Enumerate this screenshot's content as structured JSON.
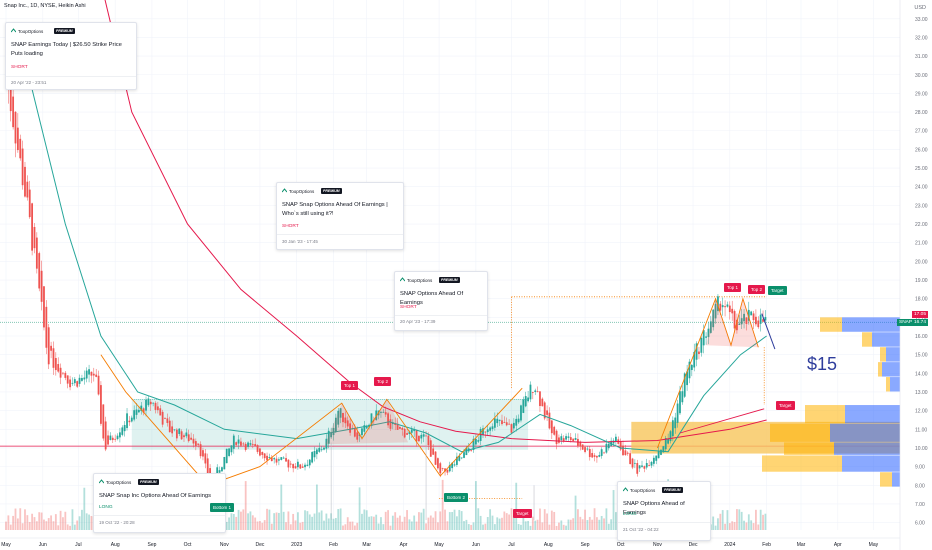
{
  "header": {
    "title": "Snap Inc., 1D, NYSE, Heikin Ashi",
    "currency": "USD"
  },
  "ideas": [
    {
      "author": "ToopOptions",
      "badge": "PREMIUM",
      "title": "SNAP Earnings Today | $26.50 Strike Price Puts loading",
      "side": "SHORT",
      "date": "20 Apr '22 - 23:51"
    },
    {
      "author": "ToopOptions",
      "badge": "PREMIUM",
      "title": "SNAP Snap Options Ahead Of Earnings | Who`s still using it?!",
      "side": "SHORT",
      "date": "30 Jan '23 - 17:45"
    },
    {
      "author": "ToopOptions",
      "badge": "PREMIUM",
      "title": "SNAP  Options Ahead Of Earnings",
      "side": "SHORT",
      "date": "20 Apr '23 - 17:39"
    },
    {
      "author": "ToopOptions",
      "badge": "PREMIUM",
      "title": "SNAP Snap Inc Options Ahead Of Earnings",
      "side": "LONG",
      "date": "19 Oct '22 - 20:28"
    },
    {
      "author": "ToopOptions",
      "badge": "PREMIUM",
      "title": "SNAP Options Ahead of Earnings",
      "side": "LONG",
      "date": "21 Oct '22 - 04:22"
    }
  ],
  "pattern_labels": {
    "top1a": "Top 1",
    "top2a": "Top 2",
    "bottom1": "Bottom 1",
    "bottom2": "Bottom 2",
    "target1": "Target",
    "top1b": "Top 1",
    "top2b": "Top 2",
    "target2": "Target",
    "target3": "Target"
  },
  "projection_label": "$15",
  "price_labels": {
    "ticker": "SNAP",
    "last": "16.74",
    "other": "17.05"
  },
  "colors": {
    "up": "#26a69a",
    "down": "#ef5350",
    "ma_slow": "#e5194c",
    "ma_fast": "#26a69a",
    "pattern": "#f57c00",
    "zone": "#26a69a",
    "vp_up": "#2962ff",
    "vp_down": "#ffb300"
  },
  "chart_data": {
    "type": "line",
    "title": "Snap Inc., 1D, NYSE, Heikin Ashi",
    "y_ticks": [
      6,
      7,
      8,
      9,
      10,
      11,
      12,
      13,
      14,
      15,
      16,
      17,
      18,
      19,
      20,
      21,
      22,
      23,
      24,
      25,
      26,
      27,
      28,
      29,
      30,
      31,
      32,
      33
    ],
    "y_tick_labels": [
      "6.00",
      "7.00",
      "8.00",
      "9.00",
      "10.00",
      "11.00",
      "12.00",
      "13.00",
      "14.00",
      "15.00",
      "16.00",
      "17.00",
      "18.00",
      "19.00",
      "20.00",
      "21.00",
      "22.00",
      "23.00",
      "24.00",
      "25.00",
      "26.00",
      "27.00",
      "28.00",
      "29.00",
      "30.00",
      "31.00",
      "32.00",
      "33.00"
    ],
    "x_ticks": [
      "May",
      "Jun",
      "Jul",
      "Aug",
      "Sep",
      "Oct",
      "Nov",
      "Dec",
      "2023",
      "Feb",
      "Mar",
      "Apr",
      "May",
      "Jun",
      "Jul",
      "Aug",
      "Sep",
      "Oct",
      "Nov",
      "Dec",
      "2024",
      "Feb",
      "Mar",
      "Apr",
      "May"
    ],
    "ylim": [
      5.5,
      34
    ],
    "series": [
      {
        "name": "SNAP",
        "x": [
          "2022-05-01",
          "2022-05-20",
          "2022-06-05",
          "2022-06-25",
          "2022-07-15",
          "2022-07-23",
          "2022-08-10",
          "2022-09-01",
          "2022-09-15",
          "2022-10-10",
          "2022-10-20",
          "2022-11-10",
          "2022-11-25",
          "2022-12-15",
          "2023-01-05",
          "2023-01-25",
          "2023-02-05",
          "2023-02-22",
          "2023-03-10",
          "2023-03-25",
          "2023-04-20",
          "2023-05-01",
          "2023-05-20",
          "2023-06-15",
          "2023-07-01",
          "2023-07-20",
          "2023-08-05",
          "2023-08-20",
          "2023-09-10",
          "2023-09-25",
          "2023-10-15",
          "2023-10-25",
          "2023-11-10",
          "2023-11-25",
          "2023-12-10",
          "2023-12-25",
          "2024-01-05",
          "2024-01-20",
          "2024-02-01"
        ],
        "y": [
          30.0,
          22.5,
          15.0,
          13.5,
          14.0,
          10.0,
          11.5,
          12.5,
          11.0,
          10.3,
          8.0,
          10.5,
          10.0,
          9.3,
          9.0,
          10.2,
          12.0,
          10.5,
          12.0,
          11.0,
          10.5,
          8.5,
          9.5,
          11.5,
          11.0,
          13.5,
          10.5,
          10.5,
          9.5,
          10.5,
          8.8,
          9.3,
          10.5,
          14.0,
          16.0,
          18.0,
          16.5,
          17.0,
          16.74
        ]
      }
    ],
    "grid": true,
    "legend": "none"
  }
}
